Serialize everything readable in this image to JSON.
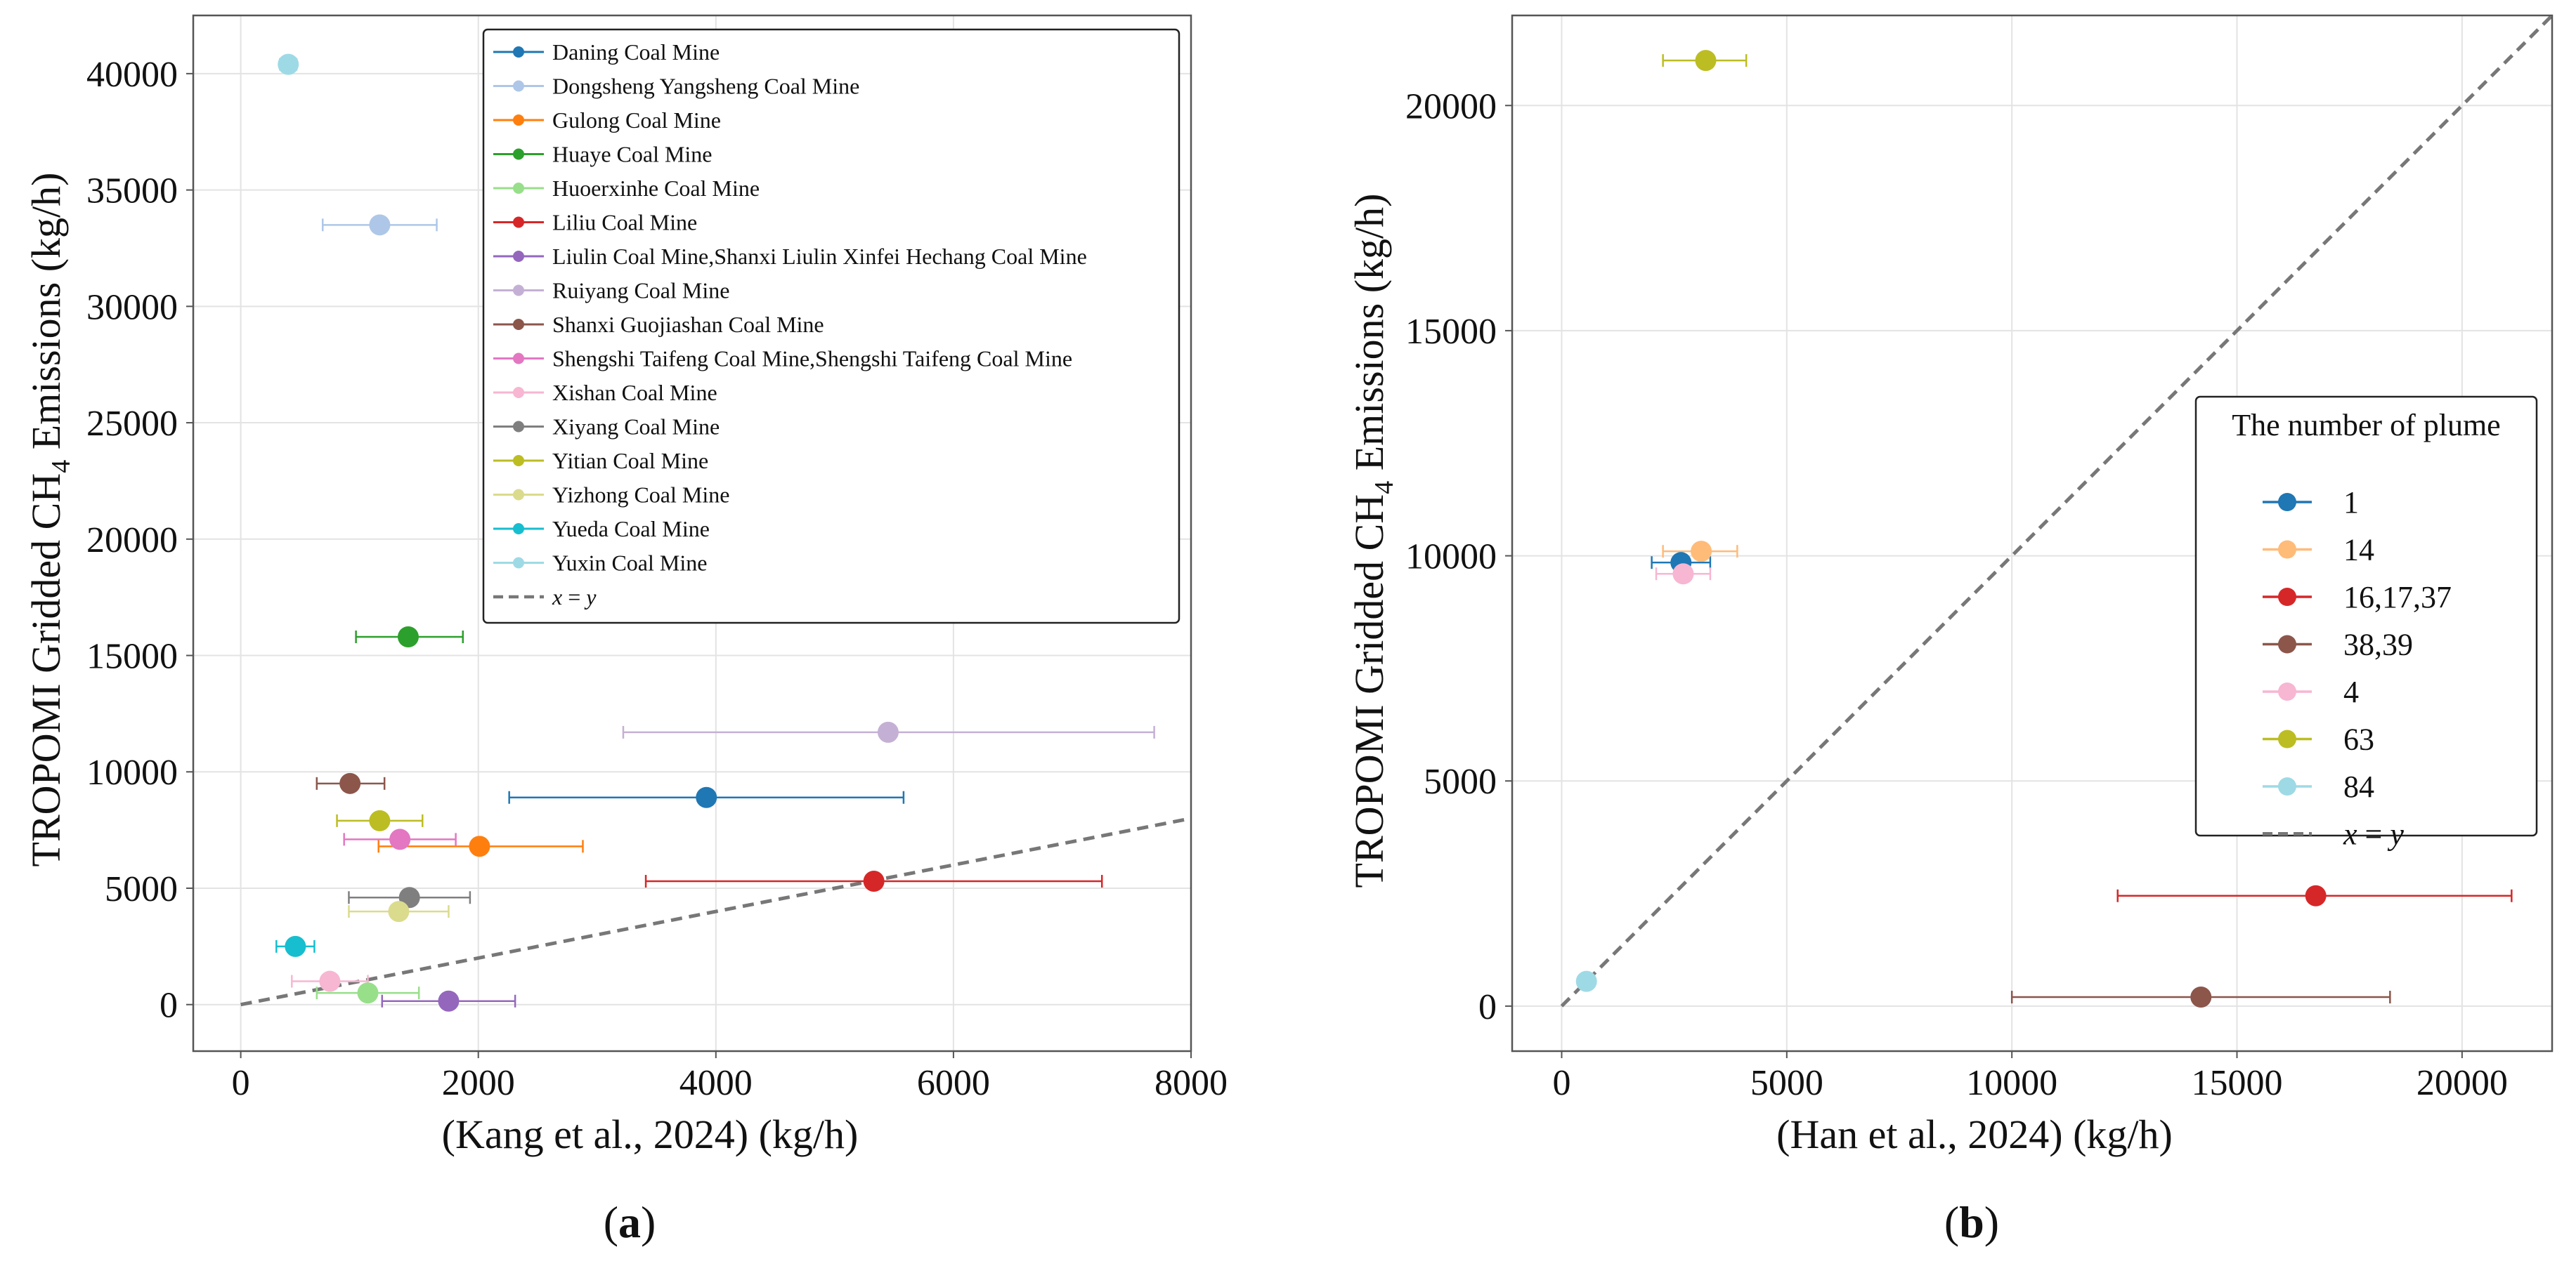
{
  "chart_data": [
    {
      "type": "scatter",
      "panel_label_open": "(",
      "panel_label_letter": "a",
      "panel_label_close": ")",
      "xlabel": "(Kang et al., 2024)  (kg/h)",
      "ylabel_pre": "TROPOMI Gridded CH",
      "ylabel_sub": "4",
      "ylabel_post": " Emissions  (kg/h)",
      "xlim": [
        -400,
        8000
      ],
      "ylim": [
        -2000,
        42500
      ],
      "xticks": [
        0,
        2000,
        4000,
        6000,
        8000
      ],
      "yticks": [
        0,
        5000,
        10000,
        15000,
        20000,
        25000,
        30000,
        35000,
        40000
      ],
      "grid": true,
      "legend_position": "top-right",
      "reference_line": {
        "label_lhs": "x",
        "label_eq": " = ",
        "label_rhs": "y",
        "from": [
          0,
          0
        ],
        "to": [
          8000,
          8000
        ],
        "color": "#777777"
      },
      "series": [
        {
          "name": "Daning Coal Mine",
          "color": "#1f77b4",
          "x": 3920,
          "y": 8900,
          "xerr": [
            2260,
            5580
          ]
        },
        {
          "name": "Dongsheng Yangsheng Coal Mine",
          "color": "#aec7e8",
          "x": 1170,
          "y": 33500,
          "xerr": [
            690,
            1650
          ]
        },
        {
          "name": "Gulong Coal Mine",
          "color": "#ff7f0e",
          "x": 2010,
          "y": 6800,
          "xerr": [
            1160,
            2880
          ]
        },
        {
          "name": "Huaye Coal Mine",
          "color": "#2ca02c",
          "x": 1410,
          "y": 15800,
          "xerr": [
            970,
            1870
          ]
        },
        {
          "name": "Huoerxinhe Coal Mine",
          "color": "#98df8a",
          "x": 1070,
          "y": 500,
          "xerr": [
            640,
            1500
          ]
        },
        {
          "name": "Liliu Coal Mine",
          "color": "#d62728",
          "x": 5330,
          "y": 5300,
          "xerr": [
            3410,
            7250
          ]
        },
        {
          "name": "Liulin Coal Mine,Shanxi Liulin Xinfei Hechang Coal Mine",
          "color": "#9467bd",
          "x": 1750,
          "y": 150,
          "xerr": [
            1190,
            2310
          ]
        },
        {
          "name": "Ruiyang Coal Mine",
          "color": "#c5b0d5",
          "x": 5450,
          "y": 11700,
          "xerr": [
            3220,
            7690
          ]
        },
        {
          "name": "Shanxi Guojiashan Coal Mine",
          "color": "#8c564b",
          "x": 920,
          "y": 9500,
          "xerr": [
            640,
            1210
          ]
        },
        {
          "name": "Shengshi Taifeng Coal Mine,Shengshi Taifeng Coal Mine",
          "color": "#e377c2",
          "x": 1340,
          "y": 7100,
          "xerr": [
            870,
            1810
          ]
        },
        {
          "name": "Xishan Coal Mine",
          "color": "#f7b6d2",
          "x": 750,
          "y": 1000,
          "xerr": [
            430,
            1070
          ]
        },
        {
          "name": "Xiyang Coal Mine",
          "color": "#7f7f7f",
          "x": 1420,
          "y": 4600,
          "xerr": [
            910,
            1930
          ]
        },
        {
          "name": "Yitian Coal Mine",
          "color": "#bcbd22",
          "x": 1170,
          "y": 7900,
          "xerr": [
            810,
            1530
          ]
        },
        {
          "name": "Yizhong Coal Mine",
          "color": "#dbdb8d",
          "x": 1330,
          "y": 4000,
          "xerr": [
            910,
            1750
          ]
        },
        {
          "name": "Yueda Coal Mine",
          "color": "#17becf",
          "x": 460,
          "y": 2500,
          "xerr": [
            300,
            620
          ]
        },
        {
          "name": "Yuxin Coal Mine",
          "color": "#9edae5",
          "x": 400,
          "y": 40400,
          "xerr": [
            330,
            470
          ]
        }
      ]
    },
    {
      "type": "scatter",
      "panel_label_open": "(",
      "panel_label_letter": "b",
      "panel_label_close": ")",
      "xlabel": "(Han et al., 2024)  (kg/h)",
      "ylabel_pre": "TROPOMI Gridded CH",
      "ylabel_sub": "4",
      "ylabel_post": " Emissions  (kg/h)",
      "xlim": [
        -1100,
        22000
      ],
      "ylim": [
        -1000,
        22000
      ],
      "xticks": [
        0,
        5000,
        10000,
        15000,
        20000
      ],
      "yticks": [
        0,
        5000,
        10000,
        15000,
        20000
      ],
      "grid": true,
      "legend_title": "The number of plume",
      "legend_position": "center-right",
      "reference_line": {
        "label_lhs": "x",
        "label_eq": " = ",
        "label_rhs": "y",
        "from": [
          0,
          0
        ],
        "to": [
          22000,
          22000
        ],
        "color": "#777777"
      },
      "series": [
        {
          "name": "1",
          "color": "#1f77b4",
          "x": 2650,
          "y": 9850,
          "xerr": [
            2000,
            3300
          ]
        },
        {
          "name": "14",
          "color": "#ffbb78",
          "x": 3100,
          "y": 10100,
          "xerr": [
            2250,
            3900
          ]
        },
        {
          "name": "16,17,37",
          "color": "#d62728",
          "x": 16750,
          "y": 2450,
          "xerr": [
            12350,
            21100
          ]
        },
        {
          "name": "38,39",
          "color": "#8c564b",
          "x": 14200,
          "y": 200,
          "xerr": [
            10000,
            18400
          ]
        },
        {
          "name": "4",
          "color": "#f7b6d2",
          "x": 2700,
          "y": 9600,
          "xerr": [
            2100,
            3300
          ]
        },
        {
          "name": "63",
          "color": "#bcbd22",
          "x": 3200,
          "y": 21000,
          "xerr": [
            2250,
            4100
          ]
        },
        {
          "name": "84",
          "color": "#9edae5",
          "x": 550,
          "y": 550,
          "xerr": [
            400,
            700
          ]
        }
      ]
    }
  ]
}
